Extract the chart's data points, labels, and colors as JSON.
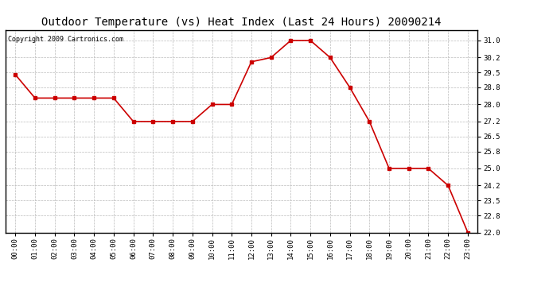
{
  "title": "Outdoor Temperature (vs) Heat Index (Last 24 Hours) 20090214",
  "copyright": "Copyright 2009 Cartronics.com",
  "x_labels": [
    "00:00",
    "01:00",
    "02:00",
    "03:00",
    "04:00",
    "05:00",
    "06:00",
    "07:00",
    "08:00",
    "09:00",
    "10:00",
    "11:00",
    "12:00",
    "13:00",
    "14:00",
    "15:00",
    "16:00",
    "17:00",
    "18:00",
    "19:00",
    "20:00",
    "21:00",
    "22:00",
    "23:00"
  ],
  "y_values": [
    29.4,
    28.3,
    28.3,
    28.3,
    28.3,
    28.3,
    27.2,
    27.2,
    27.2,
    27.2,
    28.0,
    28.0,
    30.0,
    30.2,
    31.0,
    31.0,
    30.2,
    28.8,
    27.2,
    25.0,
    25.0,
    25.0,
    24.2,
    22.0
  ],
  "line_color": "#cc0000",
  "marker_color": "#cc0000",
  "marker": "s",
  "marker_size": 3,
  "line_width": 1.2,
  "ylim_min": 22.0,
  "ylim_max": 31.5,
  "yticks": [
    22.0,
    22.8,
    23.5,
    24.2,
    25.0,
    25.8,
    26.5,
    27.2,
    28.0,
    28.8,
    29.5,
    30.2,
    31.0
  ],
  "grid_color": "#bbbbbb",
  "grid_linestyle": "--",
  "bg_color": "#ffffff",
  "border_color": "#000000",
  "title_fontsize": 10,
  "tick_fontsize": 6.5,
  "copyright_fontsize": 6
}
